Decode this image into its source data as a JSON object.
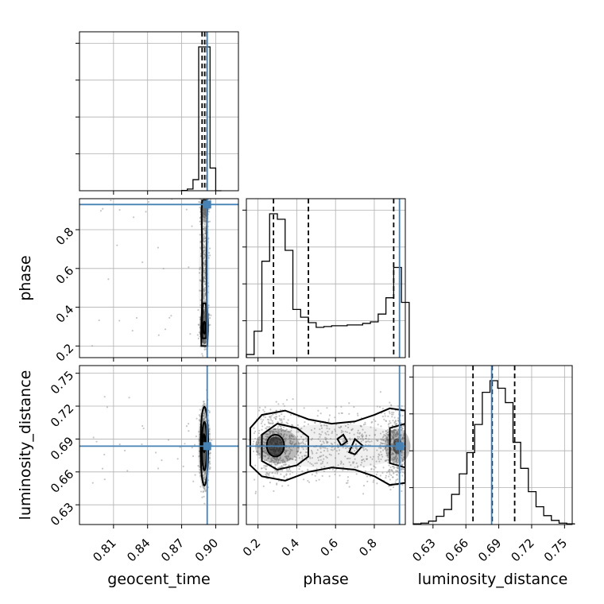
{
  "chart_data": {
    "type": "scatter",
    "subtype": "corner-plot",
    "parameters": [
      "geocent_time",
      "phase",
      "luminosity_distance"
    ],
    "axis_labels": {
      "geocent_time": "geocent_time",
      "phase": "phase",
      "luminosity_distance": "luminosity_distance"
    },
    "ranges": {
      "geocent_time": [
        0.78,
        0.92
      ],
      "phase": [
        0.14,
        0.96
      ],
      "luminosity_distance": [
        0.612,
        0.757
      ]
    },
    "ticks": {
      "geocent_time": {
        "values": [
          0.81,
          0.84,
          0.87,
          0.9
        ],
        "labels": [
          "0.81",
          "0.84",
          "0.87",
          "0.90"
        ]
      },
      "phase": {
        "values": [
          0.2,
          0.4,
          0.6,
          0.8
        ],
        "labels": [
          "0.2",
          "0.4",
          "0.6",
          "0.8"
        ]
      },
      "luminosity_distance": {
        "values": [
          0.63,
          0.66,
          0.69,
          0.72,
          0.75
        ],
        "labels": [
          "0.63",
          "0.66",
          "0.69",
          "0.72",
          "0.75"
        ]
      }
    },
    "truths": {
      "geocent_time": 0.8925,
      "phase": 0.93,
      "luminosity_distance": 0.6835
    },
    "quantiles": {
      "geocent_time": [
        0.888,
        0.8903,
        0.8923
      ],
      "phase": [
        0.28,
        0.46,
        0.9
      ],
      "luminosity_distance": [
        0.6665,
        0.684,
        0.7045
      ]
    },
    "marginals": {
      "geocent_time": {
        "bin_edges": [
          0.87,
          0.875,
          0.88,
          0.885,
          0.89,
          0.895,
          0.9,
          0.905
        ],
        "counts": [
          1,
          6,
          40,
          520,
          520,
          82,
          0
        ]
      },
      "phase": {
        "bin_edges": [
          0.14,
          0.18,
          0.22,
          0.26,
          0.3,
          0.34,
          0.38,
          0.42,
          0.46,
          0.5,
          0.54,
          0.58,
          0.62,
          0.66,
          0.7,
          0.74,
          0.78,
          0.82,
          0.86,
          0.9,
          0.94,
          0.98
        ],
        "counts": [
          4,
          34,
          124,
          185,
          178,
          138,
          62,
          52,
          45,
          39,
          40,
          41,
          41,
          42,
          42,
          44,
          46,
          56,
          77,
          116,
          71
        ]
      },
      "luminosity_distance": {
        "bin_edges": [
          0.612,
          0.619,
          0.626,
          0.633,
          0.64,
          0.647,
          0.654,
          0.661,
          0.668,
          0.675,
          0.682,
          0.689,
          0.696,
          0.703,
          0.71,
          0.717,
          0.724,
          0.731,
          0.738,
          0.745,
          0.752,
          0.759
        ],
        "counts": [
          1,
          2,
          5,
          12,
          22,
          44,
          74,
          105,
          146,
          193,
          210,
          199,
          178,
          120,
          82,
          48,
          26,
          13,
          6,
          2,
          1
        ]
      }
    },
    "grid": true,
    "samples_shown": true,
    "contour_levels": 3,
    "colors": {
      "truth": "#4682b4",
      "hist": "#000000",
      "density": "#000000",
      "samples": "#9a9a9a",
      "grid": "#b0b0b0"
    }
  }
}
